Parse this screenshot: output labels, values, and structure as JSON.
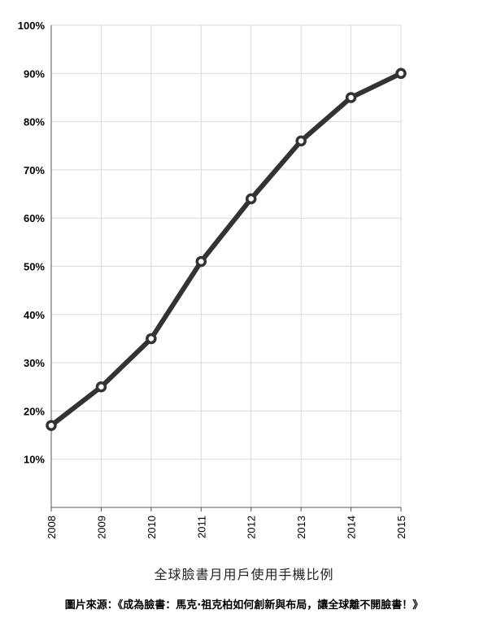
{
  "chart_data": {
    "type": "line",
    "title": "全球臉書月用戶使用手機比例",
    "x": [
      "2008",
      "2009",
      "2010",
      "2011",
      "2012",
      "2013",
      "2014",
      "2015"
    ],
    "series": [
      {
        "values": [
          17,
          25,
          35,
          51,
          64,
          76,
          85,
          90
        ]
      }
    ],
    "yticks": [
      "10%",
      "20%",
      "30%",
      "40%",
      "50%",
      "60%",
      "70%",
      "80%",
      "90%",
      "100%"
    ],
    "ylim": [
      0,
      100
    ],
    "grid": true,
    "line_color": "#333333",
    "marker_fill": "#ffffff"
  },
  "source": "圖片來源：《成為臉書：馬克·祖克柏如何創新與布局，讓全球離不開臉書！》"
}
